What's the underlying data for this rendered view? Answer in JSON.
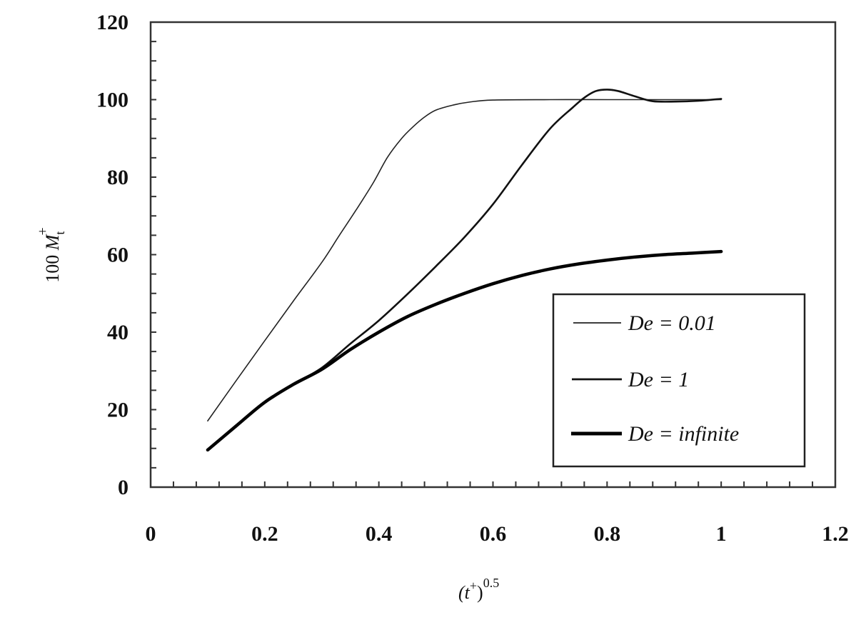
{
  "chart_data": {
    "type": "line",
    "title": "",
    "xlabel": "(t+)^0.5",
    "ylabel": "100 Mt+",
    "xlabel_parts": {
      "base": "(t",
      "sup1": "+",
      "close": ")",
      "sup2": "0.5"
    },
    "ylabel_parts": {
      "prefix": "100 ",
      "var": "M",
      "sub": "t",
      "sup": "+"
    },
    "xlim": [
      0,
      1.2
    ],
    "ylim": [
      0,
      120
    ],
    "x_ticks": [
      0,
      0.2,
      0.4,
      0.6,
      0.8,
      1,
      1.2
    ],
    "x_tick_labels": [
      "0",
      "0.2",
      "0.4",
      "0.6",
      "0.8",
      "1",
      "1.2"
    ],
    "y_ticks": [
      0,
      20,
      40,
      60,
      80,
      100,
      120
    ],
    "y_tick_labels": [
      "0",
      "20",
      "40",
      "60",
      "80",
      "100",
      "120"
    ],
    "x_minor_step": 0.04,
    "y_minor_step": 5,
    "grid": false,
    "legend_position": "lower right",
    "series": [
      {
        "name": "De = 0.01",
        "label_prefix": "De = ",
        "label_value": "0.01",
        "stroke_width": 1.6,
        "color": "#222222",
        "x": [
          0.1,
          0.15,
          0.2,
          0.25,
          0.3,
          0.33,
          0.36,
          0.39,
          0.415,
          0.44,
          0.46,
          0.48,
          0.5,
          0.53,
          0.56,
          0.6,
          0.7,
          0.8,
          0.9,
          1.0
        ],
        "y": [
          17.1,
          27.5,
          37.8,
          48.0,
          58.0,
          64.8,
          71.5,
          78.5,
          85.1,
          90.0,
          93.0,
          95.5,
          97.3,
          98.6,
          99.4,
          99.9,
          100.0,
          100.0,
          100.0,
          100.0
        ]
      },
      {
        "name": "De = 1",
        "label_prefix": "De = ",
        "label_value": "1",
        "stroke_width": 2.6,
        "color": "#111111",
        "x": [
          0.1,
          0.15,
          0.2,
          0.25,
          0.3,
          0.35,
          0.4,
          0.45,
          0.5,
          0.55,
          0.6,
          0.65,
          0.7,
          0.74,
          0.76,
          0.78,
          0.8,
          0.82,
          0.85,
          0.88,
          0.92,
          0.96,
          1.0
        ],
        "y": [
          9.6,
          15.8,
          21.9,
          26.5,
          30.8,
          37.0,
          43.0,
          49.8,
          57.0,
          64.5,
          73.0,
          83.0,
          92.5,
          98.0,
          100.5,
          102.2,
          102.6,
          102.2,
          100.8,
          99.6,
          99.5,
          99.7,
          100.2
        ]
      },
      {
        "name": "De = infinite",
        "label_prefix": "De = ",
        "label_value": "infinite",
        "stroke_width": 4.5,
        "color": "#000000",
        "x": [
          0.1,
          0.15,
          0.2,
          0.25,
          0.3,
          0.35,
          0.4,
          0.45,
          0.5,
          0.55,
          0.6,
          0.65,
          0.7,
          0.75,
          0.8,
          0.85,
          0.9,
          0.95,
          1.0
        ],
        "y": [
          9.6,
          15.8,
          21.9,
          26.5,
          30.4,
          35.5,
          40.0,
          44.0,
          47.2,
          50.0,
          52.5,
          54.6,
          56.3,
          57.6,
          58.6,
          59.4,
          60.0,
          60.4,
          60.8
        ]
      }
    ]
  }
}
